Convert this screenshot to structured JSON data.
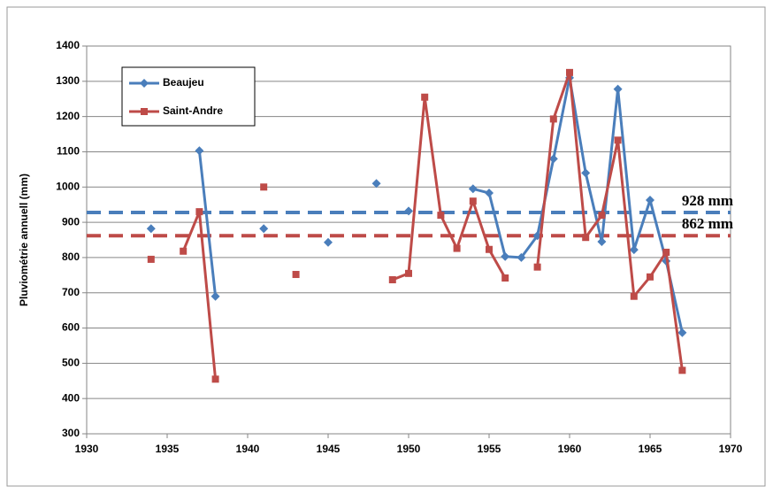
{
  "chart_data": {
    "type": "line",
    "ylabel": "Pluviométrie annuell (mm)",
    "x": [
      1934,
      1935,
      1936,
      1937,
      1938,
      1939,
      1940,
      1941,
      1942,
      1943,
      1944,
      1945,
      1946,
      1947,
      1948,
      1949,
      1950,
      1951,
      1952,
      1953,
      1954,
      1955,
      1956,
      1957,
      1958,
      1959,
      1960,
      1961,
      1962,
      1963,
      1964,
      1965,
      1966,
      1967
    ],
    "series": [
      {
        "name": "Beaujeu",
        "color": "#4a7ebb",
        "marker": "diamond",
        "values": [
          882,
          null,
          null,
          1103,
          690,
          null,
          null,
          882,
          null,
          null,
          null,
          843,
          null,
          null,
          1010,
          null,
          932,
          null,
          null,
          null,
          995,
          983,
          803,
          800,
          862,
          1080,
          1310,
          1040,
          845,
          1278,
          822,
          963,
          790,
          587
        ]
      },
      {
        "name": "Saint-Andre",
        "color": "#be4b48",
        "marker": "square",
        "values": [
          795,
          null,
          818,
          930,
          455,
          null,
          null,
          1000,
          null,
          752,
          null,
          null,
          null,
          null,
          null,
          737,
          755,
          1255,
          920,
          826,
          960,
          823,
          742,
          null,
          773,
          1193,
          1325,
          857,
          920,
          1133,
          690,
          745,
          815,
          480
        ]
      }
    ],
    "mean_lines": [
      {
        "value": 928,
        "label": "928 mm",
        "color": "#4a7ebb"
      },
      {
        "value": 862,
        "label": "862 mm",
        "color": "#be4b48"
      }
    ],
    "xlim": [
      1930,
      1970
    ],
    "xticks": [
      1930,
      1935,
      1940,
      1945,
      1950,
      1955,
      1960,
      1965,
      1970
    ],
    "ylim": [
      300,
      1400
    ],
    "yticks": [
      300,
      400,
      500,
      600,
      700,
      800,
      900,
      1000,
      1100,
      1200,
      1300,
      1400
    ],
    "grid": true,
    "legend": "upper left"
  }
}
